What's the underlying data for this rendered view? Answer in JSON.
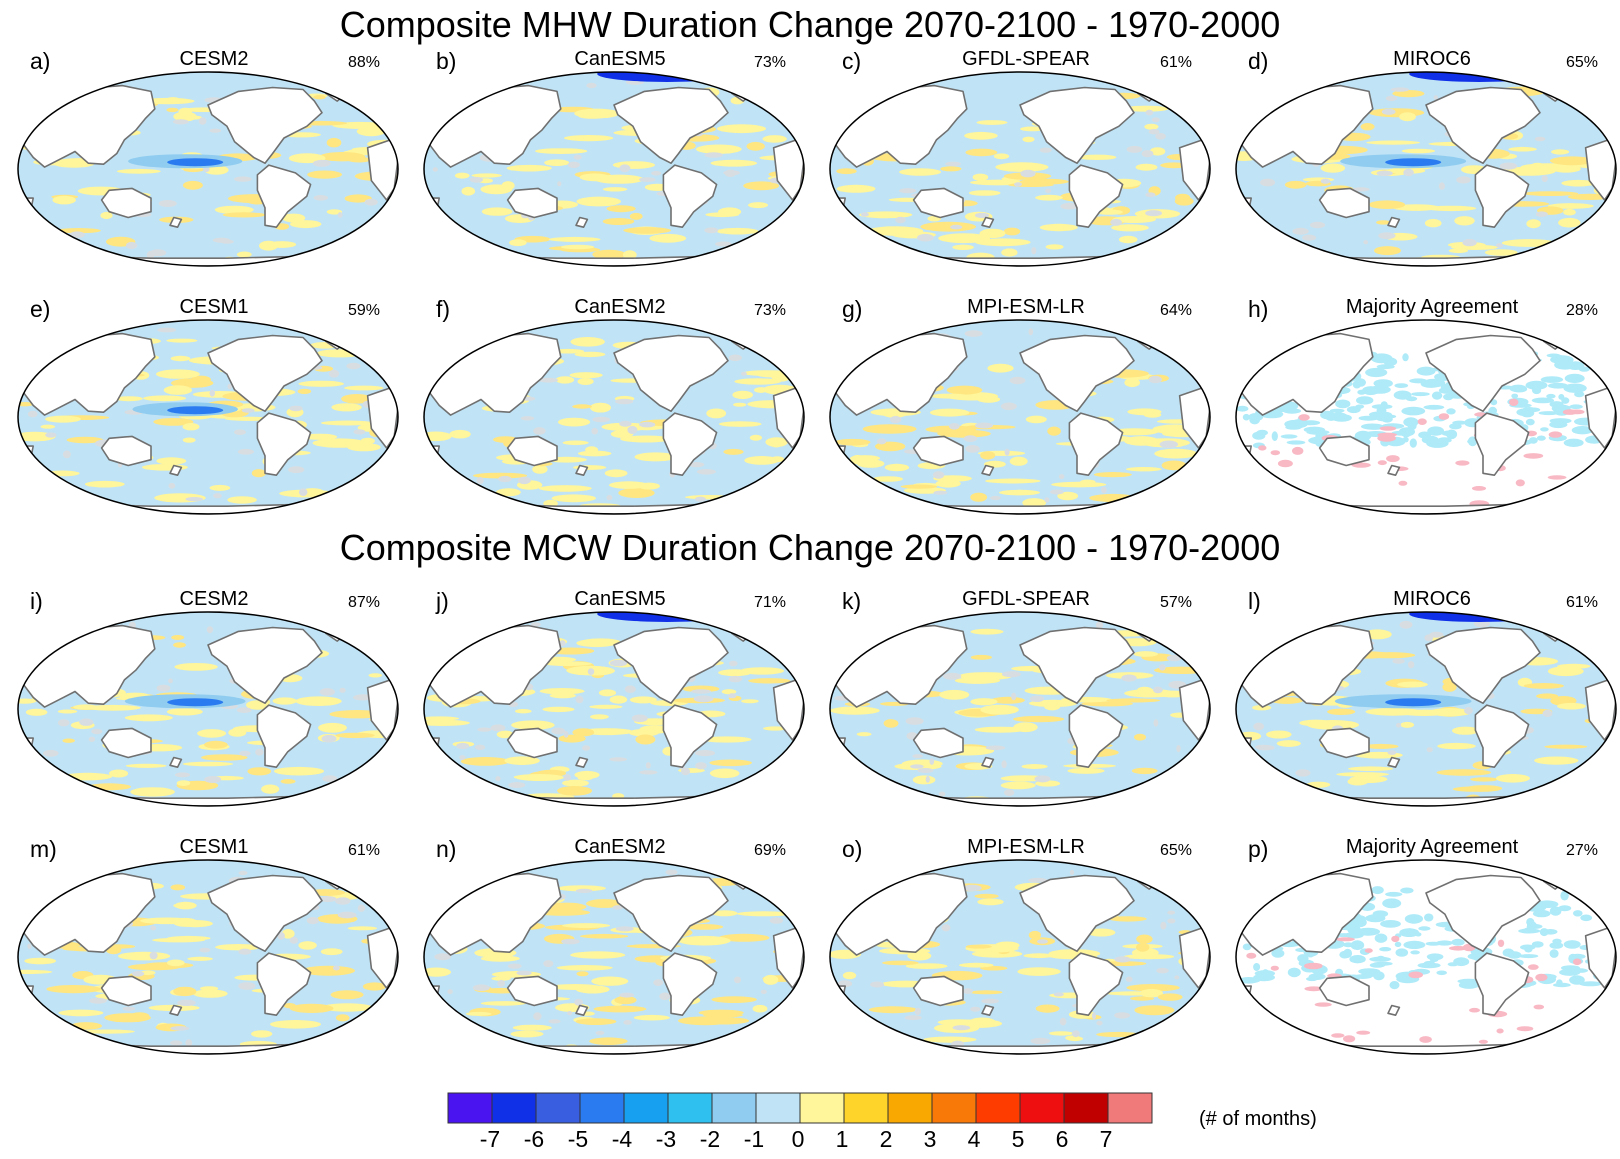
{
  "titles": {
    "mhw": "Composite MHW Duration Change 2070-2100 - 1970-2000",
    "mcw": "Composite MCW Duration Change 2070-2100 - 1970-2000"
  },
  "panels": [
    {
      "letter": "a)",
      "model": "CESM2",
      "percent": "88%"
    },
    {
      "letter": "b)",
      "model": "CanESM5",
      "percent": "73%"
    },
    {
      "letter": "c)",
      "model": "GFDL-SPEAR",
      "percent": "61%"
    },
    {
      "letter": "d)",
      "model": "MIROC6",
      "percent": "65%"
    },
    {
      "letter": "e)",
      "model": "CESM1",
      "percent": "59%"
    },
    {
      "letter": "f)",
      "model": "CanESM2",
      "percent": "73%"
    },
    {
      "letter": "g)",
      "model": "MPI-ESM-LR",
      "percent": "64%"
    },
    {
      "letter": "h)",
      "model": "Majority Agreement",
      "percent": "28%"
    },
    {
      "letter": "i)",
      "model": "CESM2",
      "percent": "87%"
    },
    {
      "letter": "j)",
      "model": "CanESM5",
      "percent": "71%"
    },
    {
      "letter": "k)",
      "model": "GFDL-SPEAR",
      "percent": "57%"
    },
    {
      "letter": "l)",
      "model": "MIROC6",
      "percent": "61%"
    },
    {
      "letter": "m)",
      "model": "CESM1",
      "percent": "61%"
    },
    {
      "letter": "n)",
      "model": "CanESM2",
      "percent": "69%"
    },
    {
      "letter": "o)",
      "model": "MPI-ESM-LR",
      "percent": "65%"
    },
    {
      "letter": "p)",
      "model": "Majority Agreement",
      "percent": "27%"
    }
  ],
  "colorbar": {
    "unit": "(# of months)",
    "ticks": [
      "-7",
      "-6",
      "-5",
      "-4",
      "-3",
      "-2",
      "-1",
      "0",
      "1",
      "2",
      "3",
      "4",
      "5",
      "6",
      "7"
    ],
    "colors": [
      "#4a14f0",
      "#1030e8",
      "#3a5ee0",
      "#2a7af0",
      "#18a0f0",
      "#30c0f0",
      "#90ccf0",
      "#c0e4f6",
      "#fff59a",
      "#ffd42a",
      "#f8a800",
      "#f87808",
      "#ff3c00",
      "#ee1010",
      "#c00000",
      "#f07a7a"
    ]
  },
  "colors": {
    "land": "#ffffff",
    "ocean_base": "#c0e4f6",
    "positive": "#fff59a",
    "negative": "#90ccf0",
    "strong_negative": "#2a7af0",
    "agree_negative": "#aeeaf8",
    "agree_positive": "#f8b8c4",
    "coast": "#707070"
  }
}
